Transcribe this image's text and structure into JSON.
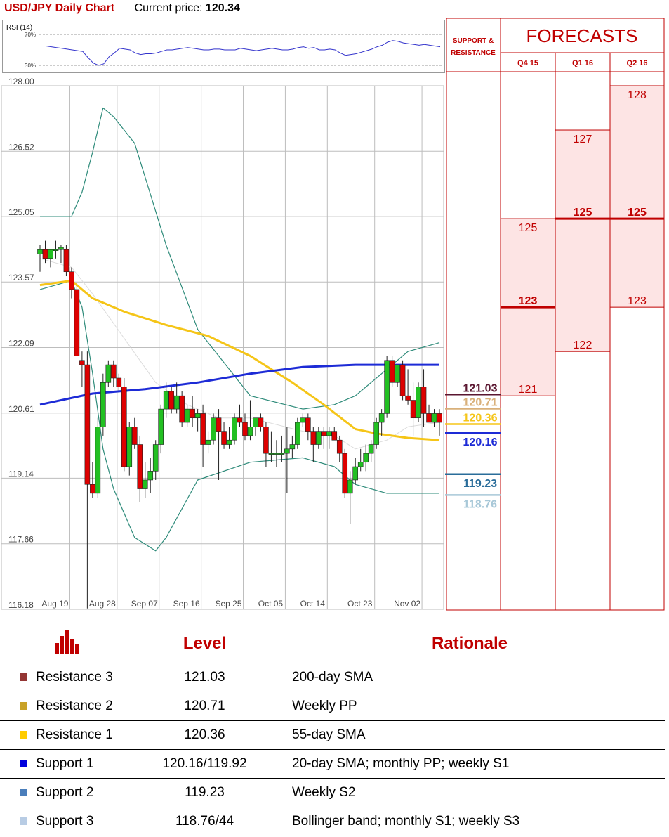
{
  "header": {
    "title": "USD/JPY Daily Chart",
    "price_label": "Current price:",
    "price_value": "120.34"
  },
  "rsi": {
    "label": "RSI (14)",
    "levels": [
      "70%",
      "30%"
    ]
  },
  "forecasts": {
    "header_left": "SUPPORT &\nRESISTANCE",
    "title": "FORECASTS",
    "quarters": [
      "Q4 15",
      "Q1 16",
      "Q2 16"
    ],
    "columns": [
      {
        "high": "125",
        "mid": "123",
        "low": "121",
        "high_val": 125,
        "mid_val": 123,
        "low_val": 121
      },
      {
        "high": "127",
        "mid": "125",
        "low": "122",
        "high_val": 127,
        "mid_val": 125,
        "low_val": 122
      },
      {
        "high": "128",
        "mid": "125",
        "low": "123",
        "high_val": 128,
        "mid_val": 125,
        "low_val": 123
      }
    ]
  },
  "colors": {
    "accent_red": "#c00000",
    "sma55": "#f5c518",
    "sma200": "#1d2bd6",
    "bollinger": "#2e8b7a",
    "bull": "#22c022",
    "bear": "#dd0000",
    "forecast_fill": "#fde4e4"
  },
  "chart_data": {
    "type": "candlestick",
    "title": "USD/JPY Daily Chart",
    "ylim": [
      116.18,
      128.0
    ],
    "yticks": [
      "128.00",
      "126.52",
      "125.05",
      "123.57",
      "122.09",
      "120.61",
      "119.14",
      "117.66",
      "116.18"
    ],
    "ytick_values": [
      128.0,
      126.52,
      125.05,
      123.57,
      122.09,
      120.61,
      119.14,
      117.66,
      116.18
    ],
    "xticks": [
      "Aug 19",
      "Aug 28",
      "Sep 07",
      "Sep 16",
      "Sep 25",
      "Oct 05",
      "Oct 14",
      "Oct 23",
      "Nov 02"
    ],
    "candles": [
      [
        124.2,
        124.4,
        123.8,
        124.3
      ],
      [
        124.3,
        124.5,
        124.0,
        124.1
      ],
      [
        124.1,
        124.3,
        123.9,
        124.3
      ],
      [
        124.3,
        124.5,
        124.1,
        124.3
      ],
      [
        124.3,
        124.4,
        124.0,
        124.35
      ],
      [
        124.3,
        124.4,
        123.7,
        123.8
      ],
      [
        123.8,
        123.9,
        123.2,
        123.4
      ],
      [
        123.4,
        123.5,
        121.9,
        121.9
      ],
      [
        121.8,
        122.0,
        121.2,
        121.7
      ],
      [
        121.7,
        122.0,
        116.2,
        119.0
      ],
      [
        119.0,
        119.5,
        118.7,
        118.8
      ],
      [
        118.8,
        120.5,
        118.7,
        120.3
      ],
      [
        120.3,
        121.5,
        120.1,
        121.3
      ],
      [
        121.3,
        121.8,
        121.2,
        121.7
      ],
      [
        121.7,
        121.8,
        121.2,
        121.4
      ],
      [
        121.4,
        121.5,
        121.1,
        121.2
      ],
      [
        121.2,
        121.4,
        119.3,
        119.4
      ],
      [
        119.4,
        120.4,
        119.2,
        120.3
      ],
      [
        120.3,
        120.5,
        119.8,
        119.9
      ],
      [
        119.9,
        120.1,
        118.6,
        118.9
      ],
      [
        118.9,
        119.5,
        118.7,
        119.1
      ],
      [
        119.1,
        119.6,
        118.8,
        119.3
      ],
      [
        119.3,
        120.0,
        119.1,
        119.9
      ],
      [
        119.9,
        120.8,
        119.7,
        120.7
      ],
      [
        120.7,
        121.3,
        120.5,
        121.1
      ],
      [
        121.1,
        121.2,
        120.6,
        120.7
      ],
      [
        120.7,
        121.3,
        120.6,
        121.0
      ],
      [
        121.0,
        121.1,
        120.3,
        120.4
      ],
      [
        120.4,
        120.8,
        120.3,
        120.7
      ],
      [
        120.7,
        121.0,
        120.3,
        120.5
      ],
      [
        120.5,
        120.7,
        120.2,
        120.6
      ],
      [
        120.6,
        120.8,
        119.4,
        119.9
      ],
      [
        119.9,
        120.2,
        119.7,
        120.0
      ],
      [
        120.0,
        120.6,
        119.9,
        120.5
      ],
      [
        120.5,
        120.7,
        119.1,
        120.2
      ],
      [
        120.2,
        120.4,
        119.8,
        119.9
      ],
      [
        119.9,
        120.3,
        119.8,
        120.0
      ],
      [
        120.0,
        120.6,
        119.9,
        120.5
      ],
      [
        120.5,
        120.8,
        120.3,
        120.4
      ],
      [
        120.4,
        120.6,
        120.0,
        120.1
      ],
      [
        120.1,
        120.9,
        120.0,
        120.3
      ],
      [
        120.3,
        120.5,
        120.1,
        120.5
      ],
      [
        120.5,
        120.6,
        120.2,
        120.3
      ],
      [
        120.3,
        120.4,
        119.4,
        119.7
      ],
      [
        119.7,
        120.2,
        119.5,
        119.7
      ],
      [
        119.7,
        120.0,
        119.4,
        119.7
      ],
      [
        119.7,
        120.1,
        119.5,
        119.7
      ],
      [
        119.7,
        120.3,
        118.8,
        119.8
      ],
      [
        119.8,
        120.1,
        119.6,
        119.9
      ],
      [
        119.9,
        120.5,
        119.8,
        120.4
      ],
      [
        120.4,
        120.6,
        120.3,
        120.5
      ],
      [
        120.5,
        120.6,
        120.0,
        120.2
      ],
      [
        120.2,
        120.3,
        119.5,
        119.9
      ],
      [
        119.9,
        120.3,
        119.8,
        120.2
      ],
      [
        120.2,
        120.3,
        119.8,
        120.1
      ],
      [
        120.1,
        120.3,
        119.8,
        120.2
      ],
      [
        120.2,
        120.3,
        120.0,
        120.0
      ],
      [
        120.0,
        120.1,
        119.5,
        119.7
      ],
      [
        119.7,
        119.8,
        118.7,
        118.8
      ],
      [
        118.8,
        119.3,
        118.1,
        119.1
      ],
      [
        119.1,
        119.6,
        119.0,
        119.4
      ],
      [
        119.4,
        119.8,
        119.3,
        119.5
      ],
      [
        119.5,
        119.9,
        119.3,
        119.7
      ],
      [
        119.7,
        120.0,
        119.5,
        119.9
      ],
      [
        119.9,
        120.5,
        119.8,
        120.4
      ],
      [
        120.4,
        120.7,
        120.1,
        120.6
      ],
      [
        120.6,
        121.9,
        120.5,
        121.8
      ],
      [
        121.8,
        121.9,
        121.2,
        121.3
      ],
      [
        121.3,
        121.7,
        121.2,
        121.7
      ],
      [
        121.7,
        121.8,
        120.9,
        121.0
      ],
      [
        121.0,
        121.6,
        120.8,
        120.9
      ],
      [
        120.9,
        121.3,
        120.1,
        120.5
      ],
      [
        120.5,
        121.3,
        120.4,
        121.2
      ],
      [
        121.2,
        121.6,
        120.3,
        120.6
      ],
      [
        120.6,
        120.8,
        120.4,
        120.4
      ],
      [
        120.4,
        120.7,
        120.3,
        120.6
      ],
      [
        120.6,
        120.7,
        120.1,
        120.4
      ]
    ],
    "series": [
      {
        "type": "line",
        "color": "#1d2bd6",
        "x": [
          0,
          10,
          20,
          30,
          40,
          50,
          60,
          70,
          76
        ],
        "y": [
          120.8,
          121.05,
          121.15,
          121.3,
          121.5,
          121.65,
          121.7,
          121.7,
          121.7
        ]
      },
      {
        "type": "line",
        "color": "#f5c518",
        "x": [
          0,
          6,
          10,
          16,
          24,
          32,
          40,
          48,
          54,
          60,
          64,
          70,
          76
        ],
        "y": [
          123.5,
          123.6,
          123.2,
          122.9,
          122.6,
          122.35,
          121.9,
          121.3,
          120.8,
          120.25,
          120.15,
          120.05,
          120.0
        ]
      },
      {
        "type": "line",
        "color": "#2e8b7a",
        "x": [
          0,
          6,
          8,
          10,
          12,
          14,
          18,
          24,
          30,
          40,
          50,
          56,
          60,
          66,
          70,
          76
        ],
        "y": [
          125.05,
          125.05,
          125.6,
          126.5,
          127.5,
          127.3,
          126.7,
          124.4,
          122.5,
          121.0,
          120.7,
          120.8,
          121.0,
          121.6,
          122.0,
          122.2
        ]
      },
      {
        "type": "line",
        "color": "#2e8b7a",
        "x": [
          0,
          6,
          8,
          10,
          12,
          14,
          18,
          22,
          24,
          30,
          40,
          50,
          56,
          60,
          66,
          70,
          76
        ],
        "y": [
          123.4,
          123.6,
          123.0,
          121.5,
          119.8,
          118.9,
          117.8,
          117.5,
          117.8,
          119.1,
          119.5,
          119.6,
          119.4,
          119.0,
          118.8,
          118.8,
          118.8
        ]
      },
      {
        "type": "line",
        "color": "#dcdcdc",
        "x": [
          0,
          6,
          10,
          16,
          22,
          28,
          34,
          40,
          50,
          56,
          60,
          66,
          70,
          76
        ],
        "y": [
          124.1,
          123.9,
          123.3,
          122.3,
          121.3,
          120.8,
          120.5,
          120.5,
          120.2,
          120.1,
          119.8,
          120.0,
          120.3,
          120.4
        ]
      }
    ],
    "levels": [
      {
        "label": "121.03",
        "value": 121.03,
        "color": "#5a1630"
      },
      {
        "label": "120.71",
        "value": 120.71,
        "color": "#d9b07a"
      },
      {
        "label": "120.36",
        "value": 120.36,
        "color": "#f5c518"
      },
      {
        "label": "120.16",
        "value": 120.16,
        "color": "#1d2bd6"
      },
      {
        "label": "119.23",
        "value": 119.23,
        "color": "#2a6d9a"
      },
      {
        "label": "118.76",
        "value": 118.76,
        "color": "#a8c8d8"
      }
    ],
    "rsi_values": [
      55,
      55,
      54,
      53,
      52,
      51,
      50,
      49,
      48,
      40,
      33,
      30,
      32,
      41,
      46,
      52,
      51,
      50,
      46,
      44,
      45,
      45,
      46,
      48,
      50,
      50,
      51,
      52,
      53,
      52,
      51,
      50,
      50,
      51,
      51,
      50,
      50,
      50,
      52,
      51,
      50,
      49,
      50,
      51,
      52,
      51,
      50,
      50,
      51,
      53,
      54,
      52,
      53,
      50,
      50,
      51,
      50,
      46,
      43,
      44,
      45,
      47,
      49,
      51,
      54,
      56,
      60,
      62,
      61,
      59,
      58,
      57,
      56,
      57,
      56,
      55,
      54
    ]
  },
  "table": {
    "headers": [
      "Level",
      "Rationale"
    ],
    "rows": [
      {
        "name": "Resistance 3",
        "level": "121.03",
        "rationale": "200-day SMA",
        "color": "#943634"
      },
      {
        "name": "Resistance 2",
        "level": "120.71",
        "rationale": "Weekly PP",
        "color": "#c9a227"
      },
      {
        "name": "Resistance 1",
        "level": "120.36",
        "rationale": "55-day SMA",
        "color": "#ffcc00"
      },
      {
        "name": "Support 1",
        "level": "120.16/119.92",
        "rationale": "20-day SMA; monthly PP; weekly S1",
        "color": "#0000dd"
      },
      {
        "name": "Support 2",
        "level": "119.23",
        "rationale": "Weekly S2",
        "color": "#4a7ebb"
      },
      {
        "name": "Support 3",
        "level": "118.76/44",
        "rationale": "Bollinger band; monthly S1; weekly S3",
        "color": "#b8cce4"
      }
    ]
  }
}
